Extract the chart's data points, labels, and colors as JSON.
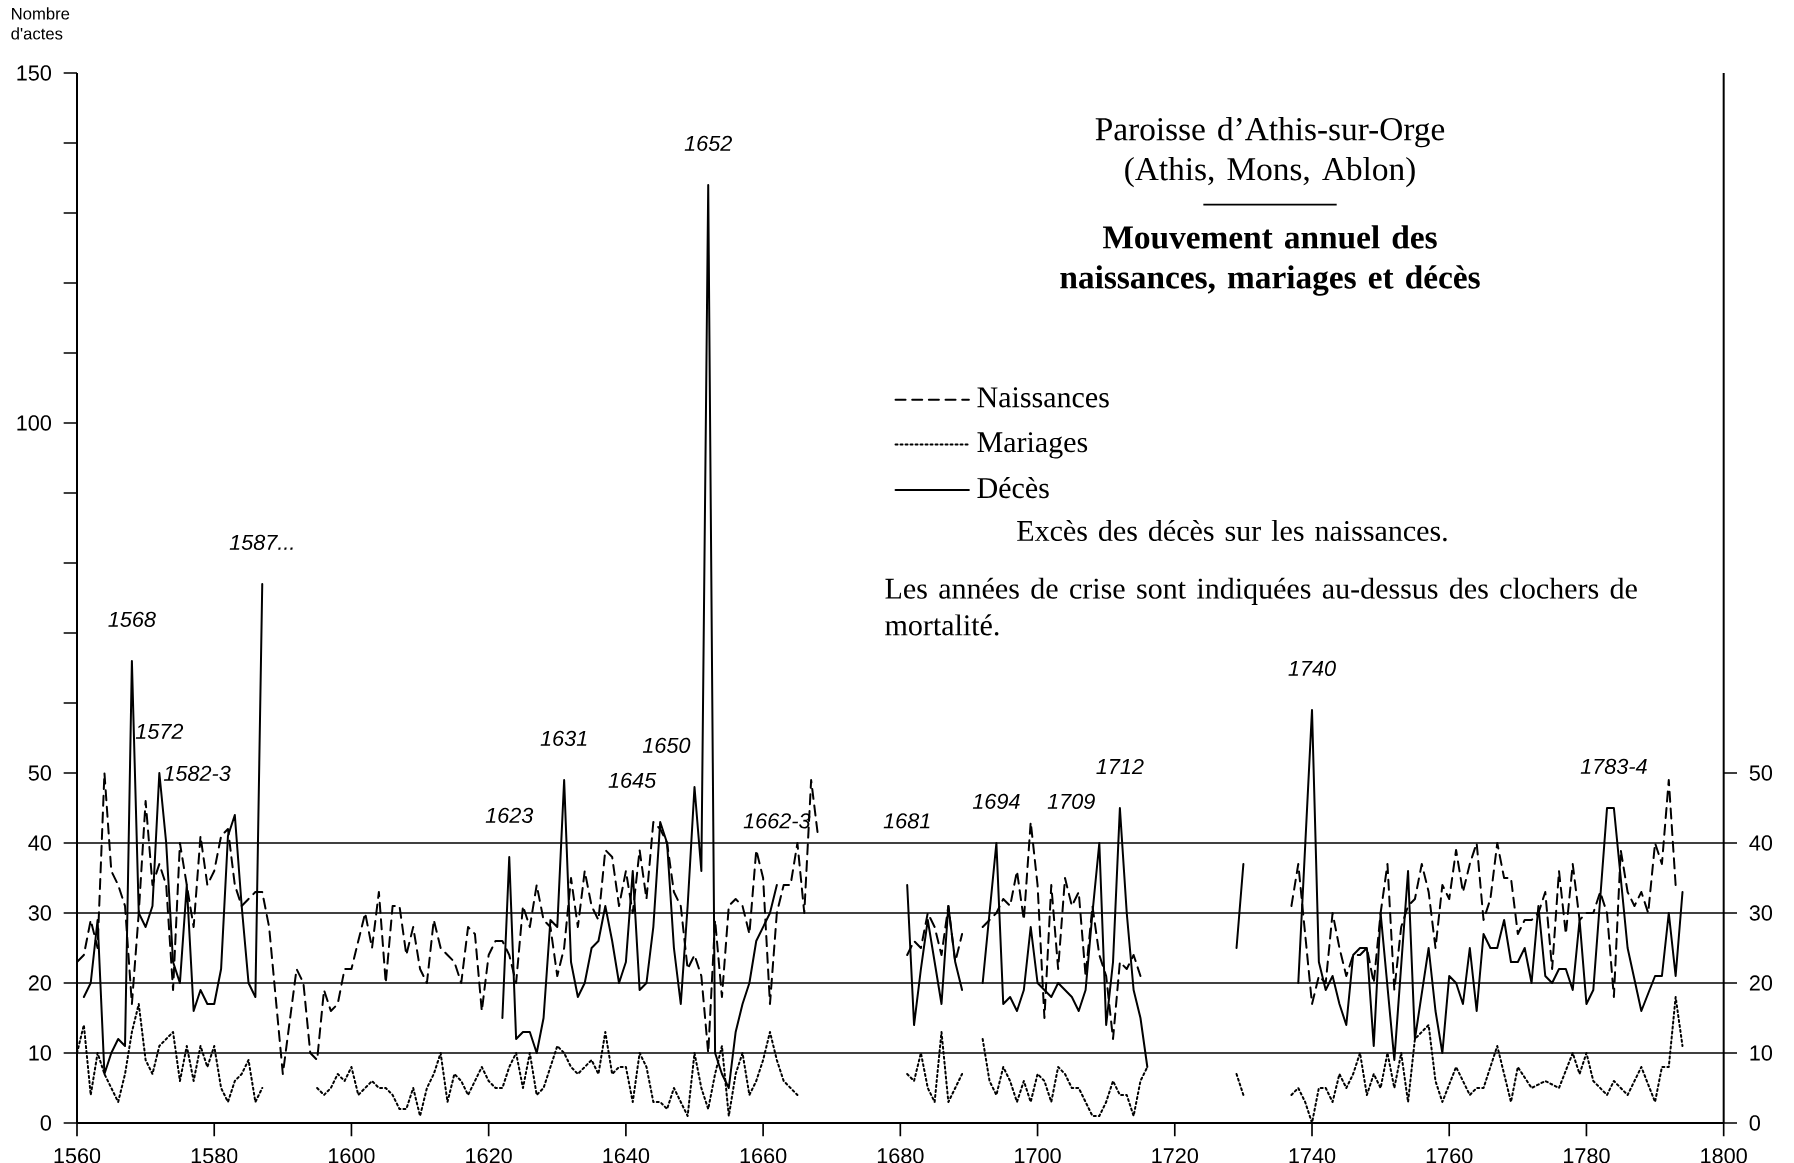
{
  "chart_data": {
    "type": "line",
    "title": "Paroisse d’Athis-sur-Orge (Athis, Mons, Ablon)",
    "subtitle": "Mouvement annuel des naissances, mariages et décès",
    "ylabel": "Nombre d'actes",
    "xlim": [
      1560,
      1800
    ],
    "xticks": [
      1560,
      1580,
      1600,
      1620,
      1640,
      1660,
      1680,
      1700,
      1720,
      1740,
      1760,
      1780,
      1800
    ],
    "ylim": [
      0,
      150
    ],
    "yticks": [
      0,
      10,
      20,
      30,
      40,
      50,
      {
        "value": 60,
        "label": null
      },
      {
        "value": 70,
        "label": null
      },
      {
        "value": 80,
        "label": null
      },
      {
        "value": 90,
        "label": null
      },
      100,
      {
        "value": 110,
        "label": null
      },
      {
        "value": 120,
        "label": null
      },
      {
        "value": 130,
        "label": null
      },
      {
        "value": 140,
        "label": null
      },
      150
    ],
    "y2lim": [
      0,
      150
    ],
    "y2ticks": [
      0,
      10,
      20,
      30,
      40,
      50
    ],
    "legend": "right",
    "marker": "none",
    "ref_lines": [
      {
        "axis": "y",
        "value": 10
      },
      {
        "axis": "y",
        "value": 20
      },
      {
        "axis": "y",
        "value": 30
      },
      {
        "axis": "y",
        "value": 40
      }
    ],
    "series": [
      {
        "name": "Naissances",
        "color": "#000000",
        "line_style": "dashed",
        "x": [
          1560,
          1561,
          1562,
          1563,
          1564,
          1565,
          1566,
          1567,
          1568,
          1569,
          1570,
          1571,
          1572,
          1573,
          1574,
          1575,
          1576,
          1577,
          1578,
          1579,
          1580,
          1581,
          1582,
          1583,
          1584,
          1585,
          1586,
          1587,
          1588,
          1590,
          1592,
          1593,
          1594,
          1595,
          1596,
          1597,
          1598,
          1599,
          1600,
          1602,
          1603,
          1604,
          1605,
          1606,
          1607,
          1608,
          1609,
          1610,
          1611,
          1612,
          1613,
          1614,
          1615,
          1616,
          1617,
          1618,
          1619,
          1620,
          1621,
          1622,
          1623,
          1624,
          1625,
          1626,
          1627,
          1628,
          1629,
          1630,
          1631,
          1632,
          1633,
          1634,
          1635,
          1636,
          1637,
          1638,
          1639,
          1640,
          1641,
          1642,
          1643,
          1644,
          1645,
          1646,
          1647,
          1648,
          1649,
          1650,
          1651,
          1652,
          1653,
          1654,
          1655,
          1656,
          1657,
          1658,
          1659,
          1660,
          1661,
          1662,
          1663,
          1664,
          1665,
          1666,
          1667,
          1668,
          1675,
          1681,
          1682,
          1683,
          1684,
          1685,
          1686,
          1687,
          1688,
          1689,
          1690,
          1692,
          1693,
          1694,
          1695,
          1696,
          1697,
          1698,
          1699,
          1700,
          1701,
          1702,
          1703,
          1704,
          1705,
          1706,
          1707,
          1708,
          1709,
          1710,
          1711,
          1712,
          1713,
          1714,
          1715,
          1725,
          1737,
          1738,
          1739,
          1740,
          1741,
          1742,
          1743,
          1744,
          1745,
          1746,
          1747,
          1748,
          1749,
          1750,
          1751,
          1752,
          1753,
          1754,
          1755,
          1756,
          1757,
          1758,
          1759,
          1760,
          1761,
          1762,
          1763,
          1764,
          1765,
          1766,
          1767,
          1768,
          1769,
          1770,
          1771,
          1772,
          1773,
          1774,
          1775,
          1776,
          1777,
          1778,
          1779,
          1780,
          1781,
          1782,
          1783,
          1784,
          1785,
          1786,
          1787,
          1788,
          1789,
          1790,
          1791,
          1792,
          1793
        ],
        "values": [
          23,
          24,
          29,
          25,
          50,
          36,
          34,
          31,
          17,
          30,
          46,
          34,
          37,
          34,
          19,
          40,
          34,
          28,
          41,
          34,
          36,
          41,
          42,
          34,
          31,
          32,
          33,
          33,
          28,
          7,
          22,
          20,
          10,
          9,
          19,
          16,
          17,
          22,
          22,
          30,
          25,
          33,
          20,
          31,
          31,
          24,
          28,
          22,
          20,
          29,
          25,
          24,
          23,
          20,
          28,
          27,
          16,
          24,
          26,
          26,
          24,
          20,
          31,
          28,
          34,
          29,
          28,
          21,
          25,
          35,
          28,
          36,
          31,
          29,
          39,
          38,
          31,
          36,
          30,
          39,
          32,
          43,
          42,
          40,
          33,
          31,
          22,
          24,
          21,
          10,
          29,
          18,
          31,
          32,
          31,
          27,
          39,
          35,
          17,
          30,
          34,
          34,
          40,
          30,
          49,
          41,
          null,
          24,
          26,
          25,
          30,
          28,
          24,
          31,
          23,
          27,
          null,
          28,
          29,
          30,
          32,
          31,
          36,
          29,
          43,
          34,
          15,
          34,
          22,
          35,
          31,
          33,
          21,
          31,
          24,
          21,
          12,
          23,
          22,
          24,
          21,
          null,
          31,
          37,
          27,
          17,
          21,
          20,
          30,
          25,
          21,
          24,
          24,
          25,
          20,
          30,
          37,
          19,
          28,
          31,
          32,
          37,
          33,
          25,
          34,
          32,
          39,
          33,
          37,
          40,
          29,
          32,
          40,
          35,
          35,
          27,
          29,
          29,
          30,
          33,
          22,
          36,
          27,
          37,
          29,
          30,
          30,
          33,
          30,
          18,
          39,
          33,
          31,
          33,
          30,
          40,
          37,
          49,
          34
        ]
      },
      {
        "name": "Mariages",
        "color": "#000000",
        "line_style": "dotted",
        "x": [
          1560,
          1561,
          1562,
          1563,
          1564,
          1565,
          1566,
          1567,
          1568,
          1569,
          1570,
          1571,
          1572,
          1573,
          1574,
          1575,
          1576,
          1577,
          1578,
          1579,
          1580,
          1581,
          1582,
          1583,
          1584,
          1585,
          1586,
          1587,
          1590,
          1595,
          1596,
          1597,
          1598,
          1599,
          1600,
          1601,
          1602,
          1603,
          1604,
          1605,
          1606,
          1607,
          1608,
          1609,
          1610,
          1611,
          1612,
          1613,
          1614,
          1615,
          1616,
          1617,
          1618,
          1619,
          1620,
          1621,
          1622,
          1623,
          1624,
          1625,
          1626,
          1627,
          1628,
          1629,
          1630,
          1631,
          1632,
          1633,
          1634,
          1635,
          1636,
          1637,
          1638,
          1639,
          1640,
          1641,
          1642,
          1643,
          1644,
          1645,
          1646,
          1647,
          1648,
          1649,
          1650,
          1651,
          1652,
          1653,
          1654,
          1655,
          1656,
          1657,
          1658,
          1659,
          1660,
          1661,
          1662,
          1663,
          1664,
          1665,
          1670,
          1681,
          1682,
          1683,
          1684,
          1685,
          1686,
          1687,
          1688,
          1689,
          1690,
          1692,
          1693,
          1694,
          1695,
          1696,
          1697,
          1698,
          1699,
          1700,
          1701,
          1702,
          1703,
          1704,
          1705,
          1706,
          1707,
          1708,
          1709,
          1710,
          1711,
          1712,
          1713,
          1714,
          1715,
          1716,
          1720,
          1729,
          1730,
          1733,
          1737,
          1738,
          1739,
          1740,
          1741,
          1742,
          1743,
          1744,
          1745,
          1746,
          1747,
          1748,
          1749,
          1750,
          1751,
          1752,
          1753,
          1754,
          1755,
          1757,
          1758,
          1759,
          1761,
          1763,
          1764,
          1765,
          1767,
          1769,
          1770,
          1772,
          1774,
          1776,
          1778,
          1779,
          1780,
          1781,
          1783,
          1784,
          1786,
          1788,
          1790,
          1791,
          1792,
          1793,
          1794
        ],
        "values": [
          10,
          14,
          4,
          10,
          7,
          5,
          3,
          7,
          13,
          17,
          9,
          7,
          11,
          12,
          13,
          6,
          11,
          6,
          11,
          8,
          11,
          5,
          3,
          6,
          7,
          9,
          3,
          5,
          null,
          5,
          4,
          5,
          7,
          6,
          8,
          4,
          5,
          6,
          5,
          5,
          4,
          2,
          2,
          5,
          1,
          5,
          7,
          10,
          3,
          7,
          6,
          4,
          6,
          8,
          6,
          5,
          5,
          8,
          10,
          5,
          10,
          4,
          5,
          8,
          11,
          10,
          8,
          7,
          8,
          9,
          7,
          13,
          7,
          8,
          8,
          3,
          10,
          8,
          3,
          3,
          2,
          5,
          3,
          1,
          10,
          5,
          2,
          7,
          11,
          1,
          7,
          10,
          4,
          6,
          9,
          13,
          9,
          6,
          5,
          4,
          null,
          7,
          6,
          10,
          5,
          3,
          13,
          3,
          5,
          7,
          null,
          12,
          6,
          4,
          8,
          6,
          3,
          6,
          3,
          7,
          6,
          3,
          8,
          7,
          5,
          5,
          3,
          1,
          1,
          3,
          6,
          4,
          4,
          1,
          6,
          8,
          null,
          7,
          4,
          null,
          4,
          5,
          3,
          0,
          5,
          5,
          3,
          7,
          5,
          7,
          10,
          4,
          7,
          5,
          10,
          5,
          10,
          3,
          12,
          14,
          6,
          3,
          8,
          4,
          5,
          5,
          11,
          3,
          8,
          5,
          6,
          5,
          10,
          7,
          10,
          6,
          4,
          6,
          4,
          8,
          3,
          8,
          8,
          18,
          11
        ]
      },
      {
        "name": "Décès",
        "color": "#000000",
        "line_style": "solid",
        "x": [
          1561,
          1562,
          1563,
          1564,
          1565,
          1566,
          1567,
          1568,
          1569,
          1570,
          1571,
          1572,
          1573,
          1574,
          1575,
          1576,
          1577,
          1578,
          1579,
          1580,
          1581,
          1582,
          1583,
          1584,
          1585,
          1586,
          1587,
          1600,
          1622,
          1623,
          1624,
          1625,
          1626,
          1627,
          1628,
          1629,
          1630,
          1631,
          1632,
          1633,
          1634,
          1635,
          1636,
          1637,
          1638,
          1639,
          1640,
          1641,
          1642,
          1643,
          1644,
          1645,
          1646,
          1647,
          1648,
          1649,
          1650,
          1651,
          1652,
          1653,
          1654,
          1655,
          1656,
          1657,
          1658,
          1659,
          1660,
          1661,
          1662,
          1670,
          1681,
          1682,
          1683,
          1684,
          1685,
          1686,
          1687,
          1688,
          1689,
          1690,
          1692,
          1693,
          1694,
          1695,
          1696,
          1697,
          1698,
          1699,
          1700,
          1701,
          1702,
          1703,
          1704,
          1705,
          1706,
          1707,
          1708,
          1709,
          1710,
          1711,
          1712,
          1713,
          1714,
          1715,
          1716,
          1720,
          1729,
          1730,
          1733,
          1738,
          1740,
          1741,
          1742,
          1743,
          1744,
          1745,
          1746,
          1747,
          1748,
          1749,
          1750,
          1752,
          1754,
          1755,
          1757,
          1758,
          1759,
          1760,
          1761,
          1762,
          1763,
          1764,
          1765,
          1766,
          1767,
          1768,
          1769,
          1770,
          1771,
          1772,
          1773,
          1774,
          1775,
          1776,
          1777,
          1778,
          1779,
          1780,
          1781,
          1783,
          1784,
          1786,
          1788,
          1790,
          1791,
          1792,
          1793,
          1794
        ],
        "values": [
          18,
          20,
          29,
          7,
          10,
          12,
          11,
          66,
          30,
          28,
          31,
          50,
          40,
          23,
          20,
          34,
          16,
          19,
          17,
          17,
          22,
          41,
          44,
          31,
          20,
          18,
          77,
          null,
          15,
          38,
          12,
          13,
          13,
          10,
          15,
          29,
          28,
          49,
          23,
          18,
          20,
          25,
          26,
          31,
          26,
          20,
          23,
          36,
          19,
          20,
          28,
          43,
          40,
          25,
          17,
          31,
          48,
          36,
          134,
          10,
          7,
          5,
          13,
          17,
          20,
          26,
          28,
          30,
          34,
          null,
          34,
          14,
          22,
          29,
          23,
          17,
          31,
          23,
          19,
          null,
          20,
          30,
          40,
          17,
          18,
          16,
          19,
          28,
          20,
          19,
          18,
          20,
          19,
          18,
          16,
          19,
          30,
          40,
          14,
          23,
          45,
          30,
          19,
          15,
          8,
          null,
          25,
          37,
          null,
          20,
          59,
          23,
          19,
          21,
          17,
          14,
          24,
          25,
          25,
          11,
          30,
          9,
          36,
          12,
          25,
          16,
          10,
          21,
          20,
          17,
          25,
          16,
          27,
          25,
          25,
          29,
          23,
          23,
          25,
          20,
          31,
          21,
          20,
          22,
          22,
          19,
          29,
          17,
          19,
          45,
          45,
          25,
          16,
          21,
          21,
          30,
          21,
          33
        ]
      }
    ],
    "annotations": [
      {
        "text": "1568",
        "x": 1568,
        "y": 66
      },
      {
        "text": "1572",
        "x": 1572,
        "y": 50
      },
      {
        "text": "1582-3",
        "x": 1583,
        "y": 44
      },
      {
        "text": "1587...",
        "x": 1587,
        "y": 77
      },
      {
        "text": "1623",
        "x": 1623,
        "y": 38
      },
      {
        "text": "1631",
        "x": 1631,
        "y": 49
      },
      {
        "text": "1645",
        "x": 1645,
        "y": 43
      },
      {
        "text": "1650",
        "x": 1650,
        "y": 48
      },
      {
        "text": "1652",
        "x": 1652,
        "y": 134
      },
      {
        "text": "1662-3",
        "x": 1662,
        "y": 34
      },
      {
        "text": "1681",
        "x": 1681,
        "y": 34
      },
      {
        "text": "1694",
        "x": 1694,
        "y": 40
      },
      {
        "text": "1709",
        "x": 1709,
        "y": 40
      },
      {
        "text": "1712",
        "x": 1712,
        "y": 45
      },
      {
        "text": "1740",
        "x": 1740,
        "y": 59
      },
      {
        "text": "1783-4",
        "x": 1784,
        "y": 45
      },
      "Excès des décès sur les naissances.",
      "Les années de crise sont indiquées au-dessus des clochers de mortalité."
    ]
  }
}
